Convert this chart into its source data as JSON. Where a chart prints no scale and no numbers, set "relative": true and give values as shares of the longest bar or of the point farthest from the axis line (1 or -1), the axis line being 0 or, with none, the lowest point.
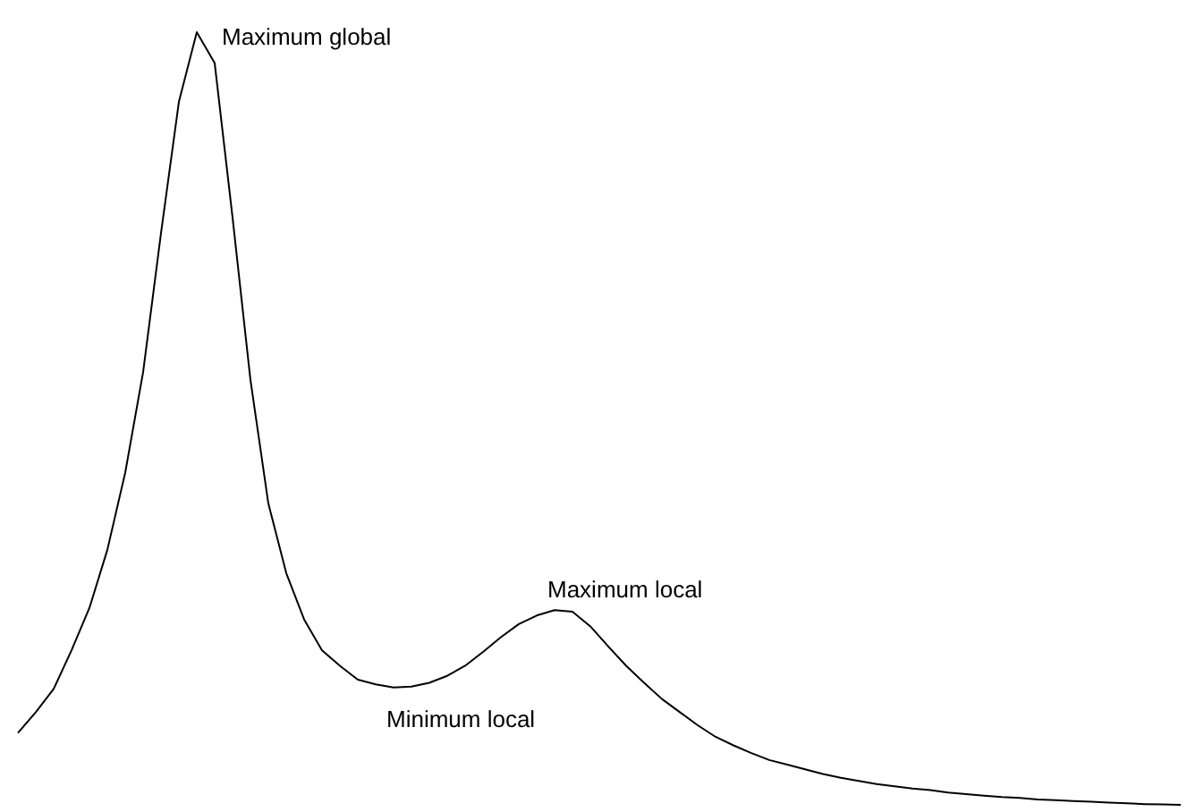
{
  "chart_data": {
    "type": "line",
    "relative": true,
    "tick_labels": false,
    "marker": "none",
    "line_style": "solid",
    "categories": [
      null,
      null,
      null,
      null,
      null,
      null,
      null,
      null,
      null,
      null,
      null,
      null,
      null,
      null,
      null,
      null,
      null,
      null,
      null,
      null,
      null,
      null,
      null,
      null,
      null,
      null,
      null,
      null,
      null,
      null,
      null,
      null,
      null,
      null,
      null,
      null,
      null,
      null,
      null,
      null,
      null,
      null,
      null,
      null,
      null,
      null,
      null,
      null,
      null,
      null,
      null,
      null,
      null,
      null,
      null,
      null,
      null,
      null,
      null,
      null,
      null,
      null,
      null,
      null,
      null,
      null
    ],
    "series": [
      {
        "color": "#000000",
        "values": [
          0.093,
          0.12,
          0.15,
          0.2,
          0.255,
          0.33,
          0.43,
          0.56,
          0.74,
          0.91,
          1,
          0.96,
          0.76,
          0.55,
          0.39,
          0.3,
          0.24,
          0.2,
          0.18,
          0.162,
          0.156,
          0.152,
          0.153,
          0.158,
          0.167,
          0.18,
          0.198,
          0.217,
          0.234,
          0.245,
          0.252,
          0.25,
          0.231,
          0.205,
          0.18,
          0.158,
          0.137,
          0.12,
          0.103,
          0.088,
          0.077,
          0.067,
          0.058,
          0.052,
          0.046,
          0.04,
          0.035,
          0.031,
          0.027,
          0.024,
          0.021,
          0.019,
          0.016,
          0.014,
          0.012,
          0.01,
          0.009,
          0.007,
          0.006,
          0.005,
          0.004,
          0.003,
          0.002,
          0.001,
          0.0005,
          0
        ]
      }
    ],
    "annotations": [
      "Maximum global",
      "Maximum local",
      "Minimum local"
    ]
  }
}
